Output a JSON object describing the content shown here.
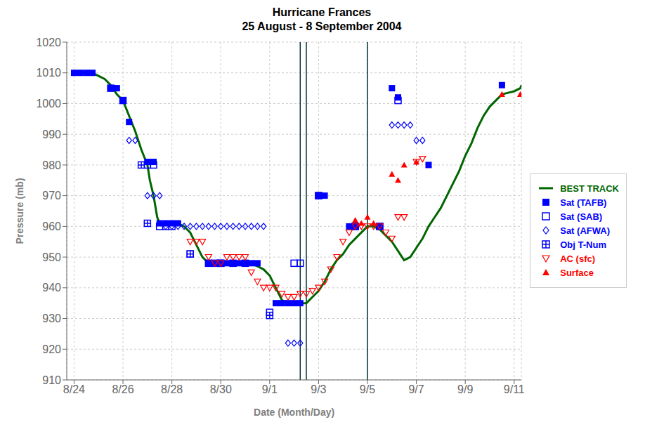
{
  "chart_data": {
    "type": "scatter",
    "title": "Hurricane Frances",
    "subtitle": "25 August - 8 September 2004",
    "x_label": "Date (Month/Day)",
    "y_label": "Pressure (mb)",
    "xlim": [
      -0.3,
      18.3
    ],
    "xticks": [
      {
        "value": 0,
        "label": "8/24"
      },
      {
        "value": 2,
        "label": "8/26"
      },
      {
        "value": 4,
        "label": "8/28"
      },
      {
        "value": 6,
        "label": "8/30"
      },
      {
        "value": 8,
        "label": "9/1"
      },
      {
        "value": 10,
        "label": "9/3"
      },
      {
        "value": 12,
        "label": "9/5"
      },
      {
        "value": 14,
        "label": "9/7"
      },
      {
        "value": 16,
        "label": "9/9"
      },
      {
        "value": 18,
        "label": "9/11"
      }
    ],
    "ylim": [
      910,
      1020
    ],
    "yticks": [
      910,
      920,
      930,
      940,
      950,
      960,
      970,
      980,
      990,
      1000,
      1010,
      1020
    ],
    "grid": true,
    "legend": "right",
    "vlines": {
      "x": [
        9.25,
        9.5,
        12.0
      ],
      "color": "#003333"
    },
    "series": [
      {
        "name": "BEST TRACK",
        "type": "line",
        "color": "#006600",
        "line_style": "solid",
        "marker": "none",
        "values": [
          [
            0.0,
            1010
          ],
          [
            0.25,
            1010
          ],
          [
            0.5,
            1010
          ],
          [
            0.75,
            1010
          ],
          [
            1.0,
            1009
          ],
          [
            1.25,
            1008
          ],
          [
            1.5,
            1006
          ],
          [
            1.75,
            1003
          ],
          [
            2.0,
            1001
          ],
          [
            2.25,
            996
          ],
          [
            2.5,
            991
          ],
          [
            2.75,
            985
          ],
          [
            3.0,
            980
          ],
          [
            3.1,
            975
          ],
          [
            3.25,
            970
          ],
          [
            3.4,
            963
          ],
          [
            3.5,
            961
          ],
          [
            3.75,
            961
          ],
          [
            4.0,
            961
          ],
          [
            4.25,
            961
          ],
          [
            4.5,
            960
          ],
          [
            4.75,
            958
          ],
          [
            5.0,
            954
          ],
          [
            5.25,
            950
          ],
          [
            5.5,
            948
          ],
          [
            5.75,
            948
          ],
          [
            6.0,
            948
          ],
          [
            6.25,
            948
          ],
          [
            6.5,
            948
          ],
          [
            6.75,
            948
          ],
          [
            7.0,
            948
          ],
          [
            7.25,
            948
          ],
          [
            7.5,
            947
          ],
          [
            7.75,
            946
          ],
          [
            8.0,
            944
          ],
          [
            8.25,
            940
          ],
          [
            8.5,
            936
          ],
          [
            8.75,
            935
          ],
          [
            9.0,
            935
          ],
          [
            9.25,
            935
          ],
          [
            9.5,
            935
          ],
          [
            9.75,
            937
          ],
          [
            10.0,
            939
          ],
          [
            10.25,
            942
          ],
          [
            10.5,
            946
          ],
          [
            10.75,
            949
          ],
          [
            11.0,
            951
          ],
          [
            11.25,
            954
          ],
          [
            11.5,
            956
          ],
          [
            11.75,
            958
          ],
          [
            12.0,
            960
          ],
          [
            12.25,
            960
          ],
          [
            12.5,
            959
          ],
          [
            12.75,
            957
          ],
          [
            13.0,
            955
          ],
          [
            13.25,
            952
          ],
          [
            13.5,
            949
          ],
          [
            13.75,
            950
          ],
          [
            14.0,
            953
          ],
          [
            14.25,
            956
          ],
          [
            14.5,
            960
          ],
          [
            14.75,
            963
          ],
          [
            15.0,
            966
          ],
          [
            15.25,
            970
          ],
          [
            15.5,
            974
          ],
          [
            15.75,
            978
          ],
          [
            16.0,
            983
          ],
          [
            16.25,
            987
          ],
          [
            16.5,
            992
          ],
          [
            16.75,
            996
          ],
          [
            17.0,
            999
          ],
          [
            17.25,
            1001
          ],
          [
            17.5,
            1003
          ],
          [
            17.75,
            1003.5
          ],
          [
            18.0,
            1004
          ],
          [
            18.25,
            1005
          ],
          [
            18.3,
            1006
          ]
        ]
      },
      {
        "name": "Sat (TAFB)",
        "type": "scatter",
        "color": "blue",
        "marker": "square",
        "values": [
          [
            0.0,
            1010
          ],
          [
            0.25,
            1010
          ],
          [
            0.5,
            1010
          ],
          [
            0.75,
            1010
          ],
          [
            1.5,
            1005
          ],
          [
            1.75,
            1005
          ],
          [
            2.0,
            1001
          ],
          [
            2.25,
            994
          ],
          [
            3.0,
            981
          ],
          [
            3.25,
            981
          ],
          [
            3.5,
            961
          ],
          [
            3.75,
            961
          ],
          [
            4.0,
            961
          ],
          [
            4.25,
            961
          ],
          [
            5.5,
            948
          ],
          [
            5.75,
            948
          ],
          [
            6.0,
            948
          ],
          [
            6.25,
            948
          ],
          [
            6.5,
            948
          ],
          [
            6.75,
            948
          ],
          [
            7.0,
            948
          ],
          [
            7.25,
            948
          ],
          [
            7.5,
            948
          ],
          [
            8.25,
            935
          ],
          [
            8.5,
            935
          ],
          [
            8.75,
            935
          ],
          [
            9.0,
            935
          ],
          [
            9.25,
            935
          ],
          [
            10.0,
            970
          ],
          [
            10.25,
            970
          ],
          [
            11.25,
            960
          ],
          [
            11.5,
            960
          ],
          [
            12.5,
            960
          ],
          [
            13.0,
            1005
          ],
          [
            13.25,
            1002
          ],
          [
            14.5,
            980
          ],
          [
            17.5,
            1006
          ]
        ]
      },
      {
        "name": "Sat (SAB)",
        "type": "scatter",
        "color": "blue",
        "marker": "square_open",
        "values": [
          [
            1.5,
            1005
          ],
          [
            2.0,
            1001
          ],
          [
            3.0,
            980
          ],
          [
            3.25,
            980
          ],
          [
            3.5,
            960
          ],
          [
            3.75,
            960
          ],
          [
            4.0,
            960
          ],
          [
            4.75,
            951
          ],
          [
            5.5,
            948
          ],
          [
            6.0,
            948
          ],
          [
            6.5,
            948
          ],
          [
            7.0,
            948
          ],
          [
            8.0,
            932
          ],
          [
            9.0,
            948
          ],
          [
            9.25,
            948
          ],
          [
            10.0,
            970
          ],
          [
            11.5,
            960
          ],
          [
            12.5,
            960
          ],
          [
            13.25,
            1001
          ]
        ]
      },
      {
        "name": "Sat (AFWA)",
        "type": "scatter",
        "color": "blue",
        "marker": "diamond_open",
        "values": [
          [
            2.25,
            988
          ],
          [
            2.5,
            988
          ],
          [
            3.0,
            970
          ],
          [
            3.25,
            970
          ],
          [
            3.5,
            970
          ],
          [
            3.75,
            960
          ],
          [
            4.0,
            960
          ],
          [
            4.25,
            960
          ],
          [
            4.5,
            960
          ],
          [
            4.75,
            960
          ],
          [
            5.0,
            960
          ],
          [
            5.25,
            960
          ],
          [
            5.5,
            960
          ],
          [
            5.75,
            960
          ],
          [
            6.0,
            960
          ],
          [
            6.25,
            960
          ],
          [
            6.5,
            960
          ],
          [
            6.75,
            960
          ],
          [
            7.0,
            960
          ],
          [
            7.25,
            960
          ],
          [
            7.5,
            960
          ],
          [
            7.75,
            960
          ],
          [
            8.75,
            922
          ],
          [
            9.0,
            922
          ],
          [
            9.25,
            922
          ],
          [
            13.0,
            993
          ],
          [
            13.25,
            993
          ],
          [
            13.5,
            993
          ],
          [
            13.75,
            993
          ],
          [
            14.0,
            988
          ],
          [
            14.25,
            988
          ]
        ]
      },
      {
        "name": "Obj T-Num",
        "type": "scatter",
        "color": "blue",
        "marker": "square_plus",
        "values": [
          [
            2.75,
            980
          ],
          [
            3.0,
            961
          ],
          [
            4.75,
            951
          ],
          [
            5.75,
            948
          ],
          [
            6.0,
            948
          ],
          [
            8.0,
            931
          ],
          [
            10.0,
            970
          ],
          [
            11.5,
            960
          ],
          [
            12.5,
            960
          ]
        ]
      },
      {
        "name": "AC (sfc)",
        "type": "scatter",
        "color": "red",
        "marker": "triangle_down_open",
        "values": [
          [
            4.75,
            955
          ],
          [
            5.0,
            955
          ],
          [
            5.25,
            955
          ],
          [
            5.5,
            950
          ],
          [
            5.75,
            948
          ],
          [
            6.0,
            948
          ],
          [
            6.25,
            950
          ],
          [
            6.5,
            950
          ],
          [
            6.75,
            950
          ],
          [
            7.0,
            950
          ],
          [
            7.25,
            945
          ],
          [
            7.5,
            942
          ],
          [
            7.75,
            940
          ],
          [
            8.0,
            940
          ],
          [
            8.25,
            940
          ],
          [
            8.5,
            938
          ],
          [
            8.75,
            937
          ],
          [
            9.0,
            937
          ],
          [
            9.25,
            938
          ],
          [
            9.5,
            938
          ],
          [
            9.75,
            939
          ],
          [
            10.0,
            940
          ],
          [
            10.25,
            942
          ],
          [
            10.5,
            946
          ],
          [
            10.75,
            950
          ],
          [
            11.0,
            955
          ],
          [
            11.25,
            958
          ],
          [
            11.5,
            960
          ],
          [
            11.75,
            960
          ],
          [
            12.0,
            960
          ],
          [
            12.25,
            960
          ],
          [
            12.5,
            960
          ],
          [
            12.75,
            958
          ],
          [
            13.0,
            956
          ],
          [
            13.25,
            963
          ],
          [
            13.5,
            963
          ],
          [
            14.0,
            981
          ],
          [
            14.25,
            982
          ]
        ]
      },
      {
        "name": "Surface",
        "type": "scatter",
        "color": "red",
        "marker": "triangle_up",
        "values": [
          [
            11.5,
            962
          ],
          [
            11.75,
            961
          ],
          [
            12.0,
            963
          ],
          [
            12.25,
            961
          ],
          [
            13.0,
            977
          ],
          [
            13.25,
            975
          ],
          [
            13.5,
            980
          ],
          [
            14.0,
            981
          ],
          [
            17.5,
            1003
          ],
          [
            18.25,
            1003
          ]
        ]
      }
    ]
  }
}
